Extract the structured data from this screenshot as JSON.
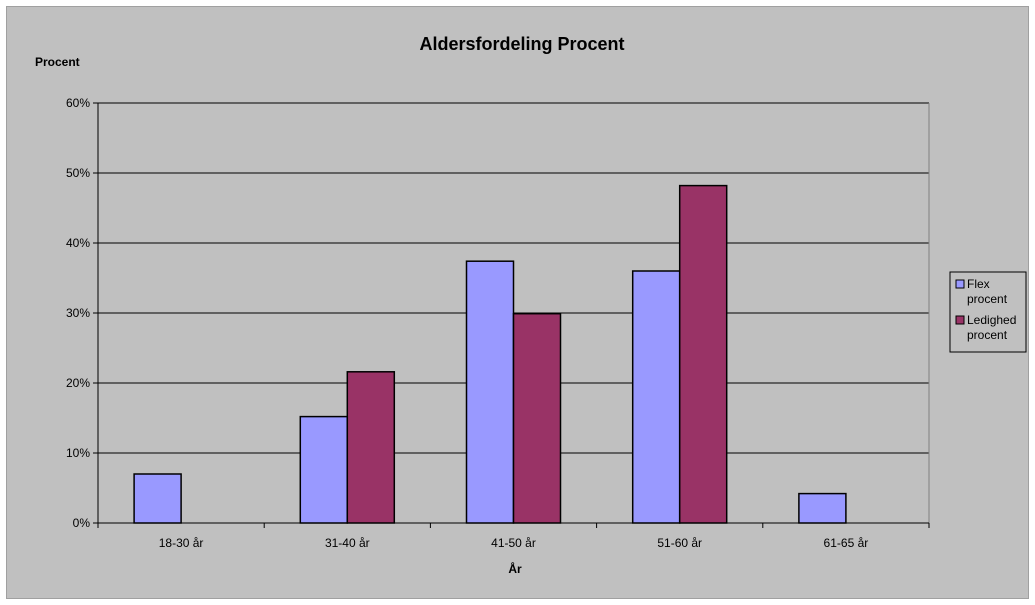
{
  "chart_data": {
    "type": "bar",
    "title": "Aldersfordeling Procent",
    "ylabel": "Procent",
    "xlabel": "År",
    "categories": [
      "18-30 år",
      "31-40 år",
      "41-50 år",
      "51-60 år",
      "61-65 år"
    ],
    "series": [
      {
        "name": "Flex procent",
        "legend_lines": [
          "Flex",
          "procent"
        ],
        "color": "#9999ff",
        "values": [
          7.0,
          15.2,
          37.4,
          36.0,
          4.2
        ]
      },
      {
        "name": "Ledighed procent",
        "legend_lines": [
          "Ledighed",
          "procent"
        ],
        "color": "#993366",
        "values": [
          0,
          21.6,
          29.9,
          48.2,
          0
        ]
      }
    ],
    "ylim": [
      0,
      60
    ],
    "yticks": [
      0,
      10,
      20,
      30,
      40,
      50,
      60
    ],
    "ytick_labels": [
      "0%",
      "10%",
      "20%",
      "30%",
      "40%",
      "50%",
      "60%"
    ],
    "grid": true,
    "legend_position": "right",
    "plot_background": "#c0c0c0"
  }
}
